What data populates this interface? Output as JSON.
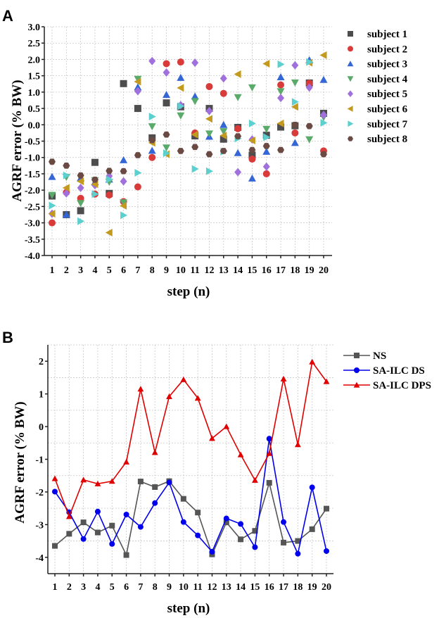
{
  "chart_data": [
    {
      "panel_label": "A",
      "type": "scatter",
      "title": "",
      "xlabel": "step (n)",
      "ylabel": "AGRF error (% BW)",
      "ylim": [
        -4.0,
        3.0
      ],
      "ytick_step": 0.5,
      "yticks": [
        "3.0",
        "2.5",
        "2.0",
        "1.5",
        "1.0",
        "0.5",
        "0.0",
        "-0.5",
        "-1.0",
        "-1.5",
        "-2.0",
        "-2.5",
        "-3.0",
        "-3.5",
        "-4.0"
      ],
      "x": [
        "1",
        "2",
        "3",
        "4",
        "5",
        "6",
        "7",
        "8",
        "9",
        "10",
        "11",
        "12",
        "13",
        "14",
        "15",
        "16",
        "17",
        "18",
        "19",
        "20"
      ],
      "grid": true,
      "legend_position": "right",
      "series": [
        {
          "name": "subject 1",
          "marker": "square",
          "color": "#4d4d4d",
          "values": [
            -2.18,
            -2.75,
            -2.63,
            -1.15,
            -2.1,
            1.26,
            0.5,
            -0.4,
            0.67,
            0.55,
            -0.34,
            0.5,
            -0.44,
            -0.08,
            -0.93,
            -0.32,
            -0.07,
            -0.03,
            1.28,
            0.35
          ]
        },
        {
          "name": "subject 2",
          "marker": "circle",
          "color": "#d93a3a",
          "values": [
            -3.0,
            -2.07,
            -2.25,
            -2.12,
            -2.15,
            -2.35,
            -1.9,
            -1.0,
            1.87,
            1.92,
            -0.25,
            1.17,
            0.96,
            -0.12,
            -1.05,
            -1.5,
            1.22,
            -0.25,
            1.27,
            -0.8
          ]
        },
        {
          "name": "subject 3",
          "marker": "triangle-up",
          "color": "#3566d6",
          "values": [
            -1.59,
            -2.75,
            -1.63,
            -1.75,
            -1.67,
            -1.08,
            1.15,
            -0.79,
            0.92,
            1.44,
            0.87,
            -0.36,
            0.0,
            -0.86,
            -1.64,
            -0.82,
            1.46,
            -0.55,
            1.98,
            1.38
          ]
        },
        {
          "name": "subject 4",
          "marker": "triangle-down",
          "color": "#5aaa6a",
          "values": [
            -2.15,
            -1.6,
            -2.4,
            -1.7,
            -1.75,
            -2.38,
            1.4,
            -0.05,
            -0.7,
            0.28,
            0.72,
            -0.27,
            -0.2,
            0.84,
            1.14,
            -0.13,
            1.02,
            1.29,
            -0.45,
            0.23
          ]
        },
        {
          "name": "subject 5",
          "marker": "diamond",
          "color": "#a070dd",
          "values": [
            -2.72,
            -2.1,
            -1.93,
            -1.85,
            -1.57,
            -1.73,
            1.03,
            1.95,
            1.6,
            0.6,
            1.9,
            0.42,
            1.42,
            -1.45,
            -0.45,
            -1.28,
            0.82,
            1.82,
            1.14,
            0.3
          ]
        },
        {
          "name": "subject 6",
          "marker": "triangle-left",
          "color": "#c39a1d",
          "values": [
            -2.72,
            -1.93,
            -1.73,
            -1.82,
            -3.3,
            -2.48,
            1.32,
            -0.55,
            -0.9,
            1.13,
            -0.3,
            0.18,
            -0.33,
            1.55,
            -0.48,
            1.87,
            0.04,
            0.55,
            1.9,
            2.13
          ]
        },
        {
          "name": "subject 7",
          "marker": "triangle-right",
          "color": "#5ccfcf",
          "values": [
            -2.47,
            -1.55,
            -2.95,
            -2.12,
            -1.67,
            -2.77,
            -1.47,
            0.25,
            -0.87,
            0.57,
            -1.35,
            -1.42,
            -0.82,
            -0.42,
            0.04,
            -0.38,
            1.85,
            0.7,
            1.92,
            0.06
          ]
        },
        {
          "name": "subject 8",
          "marker": "hexagon",
          "color": "#6b4a44",
          "values": [
            -1.13,
            -1.25,
            -1.55,
            -1.68,
            -1.41,
            -1.42,
            -0.93,
            -0.47,
            -0.3,
            -0.8,
            -0.68,
            -0.9,
            -0.8,
            -0.35,
            -0.77,
            -0.65,
            -0.77,
            0.0,
            -0.04,
            -0.9
          ]
        }
      ]
    },
    {
      "panel_label": "B",
      "type": "line",
      "title": "",
      "xlabel": "step (n)",
      "ylabel": "AGRF error (% BW)",
      "ylim": [
        -4.5,
        2.5
      ],
      "yticks": [
        "2",
        "1",
        "0",
        "-1",
        "-2",
        "-3",
        "-4"
      ],
      "x": [
        "1",
        "2",
        "3",
        "4",
        "5",
        "6",
        "7",
        "8",
        "9",
        "10",
        "11",
        "12",
        "13",
        "14",
        "15",
        "16",
        "17",
        "18",
        "19",
        "20"
      ],
      "grid": true,
      "legend_position": "top-right",
      "series": [
        {
          "name": "NS",
          "marker": "square",
          "color": "#555555",
          "values": [
            -3.65,
            -3.28,
            -2.93,
            -3.24,
            -3.03,
            -3.93,
            -1.68,
            -1.85,
            -1.67,
            -2.21,
            -2.63,
            -3.91,
            -2.93,
            -3.45,
            -3.19,
            -1.72,
            -3.55,
            -3.5,
            -3.14,
            -2.51
          ]
        },
        {
          "name": "SA-ILC DS",
          "marker": "circle",
          "color": "#0000ee",
          "values": [
            -1.99,
            -2.62,
            -3.44,
            -2.6,
            -3.59,
            -2.69,
            -3.07,
            -2.34,
            -1.71,
            -2.92,
            -3.33,
            -3.83,
            -2.81,
            -2.98,
            -3.69,
            -0.37,
            -2.92,
            -3.89,
            -1.86,
            -3.81
          ]
        },
        {
          "name": "SA-ILC DPS",
          "marker": "triangle-up",
          "color": "#e00000",
          "values": [
            -1.59,
            -2.75,
            -1.63,
            -1.75,
            -1.67,
            -1.08,
            1.15,
            -0.79,
            0.92,
            1.44,
            0.87,
            -0.36,
            0.0,
            -0.86,
            -1.64,
            -0.82,
            1.46,
            -0.55,
            1.98,
            1.38
          ]
        }
      ]
    }
  ]
}
